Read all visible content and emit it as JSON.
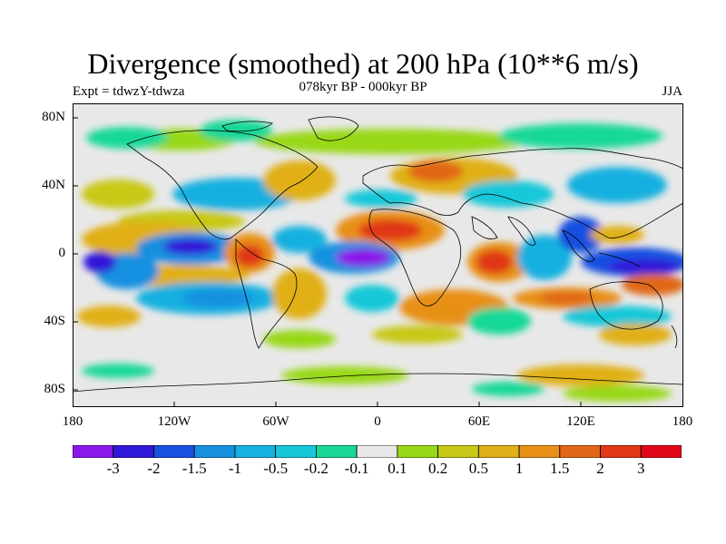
{
  "title": "Divergence (smoothed) at 200 hPa (10**6 m/s)",
  "left_label": "Expt = tdwzY-tdwza",
  "center_label": "078kyr BP - 000kyr BP",
  "right_label": "JJA",
  "y_ticks": [
    "80N",
    "40N",
    "0",
    "40S",
    "80S"
  ],
  "x_ticks": [
    "180",
    "120W",
    "60W",
    "0",
    "60E",
    "120E",
    "180"
  ],
  "colorbar": {
    "labels": [
      "-3",
      "-2",
      "-1.5",
      "-1",
      "-0.5",
      "-0.2",
      "-0.1",
      "0.1",
      "0.2",
      "0.5",
      "1",
      "1.5",
      "2",
      "3"
    ],
    "colors": [
      "#8b18e8",
      "#3018d8",
      "#1850e0",
      "#1890e0",
      "#18b0e0",
      "#18c8d8",
      "#18d898",
      "#e8e8e8",
      "#98d818",
      "#c8c818",
      "#e0b018",
      "#e89018",
      "#e06818",
      "#e03818",
      "#e00818"
    ]
  },
  "map": {
    "background": "#e8e8e8",
    "coastline_color": "#000000"
  }
}
